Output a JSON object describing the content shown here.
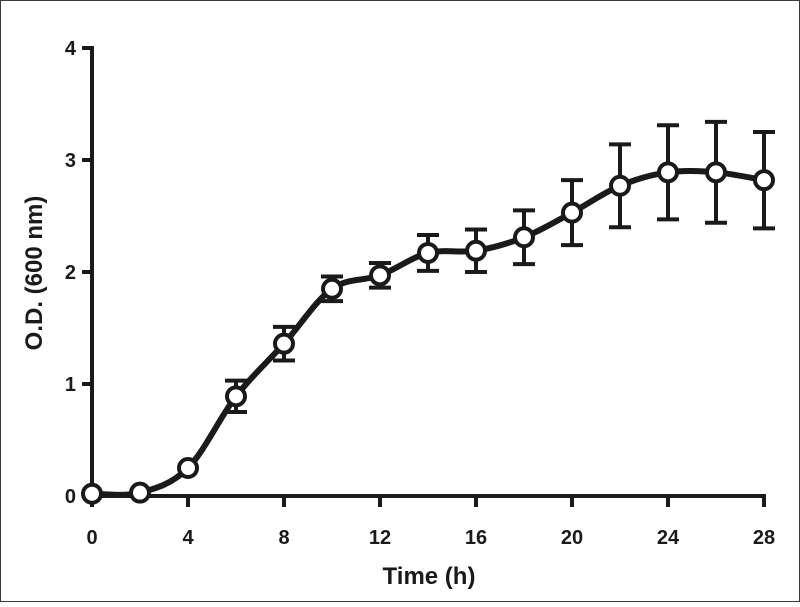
{
  "chart_data": {
    "type": "line",
    "title": "",
    "xlabel": "Time (h)",
    "ylabel": "O.D. (600 nm)",
    "xlim": [
      0,
      28
    ],
    "ylim": [
      0,
      4
    ],
    "xticks": [
      0,
      4,
      8,
      12,
      16,
      20,
      24,
      28
    ],
    "yticks": [
      0,
      1,
      2,
      3,
      4
    ],
    "grid": false,
    "legend": "none",
    "series": [
      {
        "x": [
          0,
          2,
          4,
          6,
          8,
          10,
          12,
          14,
          16,
          18,
          20,
          22,
          24,
          26,
          28
        ],
        "y": [
          0.02,
          0.03,
          0.25,
          0.89,
          1.36,
          1.85,
          1.97,
          2.17,
          2.19,
          2.31,
          2.53,
          2.77,
          2.89,
          2.89,
          2.82
        ],
        "error": [
          0.01,
          0.01,
          0.03,
          0.14,
          0.15,
          0.11,
          0.11,
          0.16,
          0.19,
          0.24,
          0.29,
          0.37,
          0.42,
          0.45,
          0.43
        ],
        "marker": "open-circle",
        "color": "#1a1a1a"
      }
    ]
  }
}
